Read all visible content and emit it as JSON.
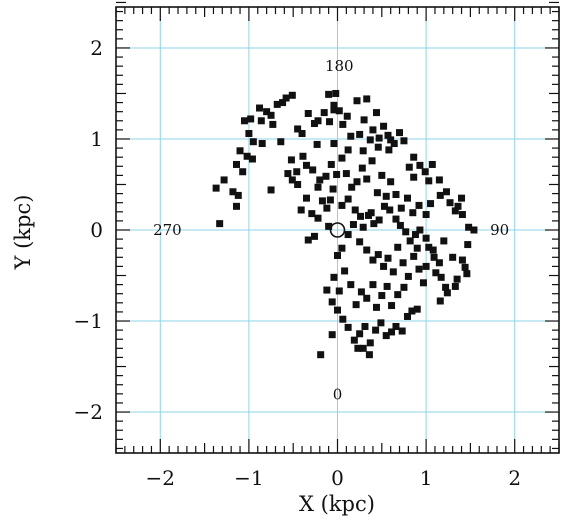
{
  "chart_data": {
    "type": "scatter",
    "xlabel": "X (kpc)",
    "ylabel": "Y (kpc)",
    "xlim": [
      -2.5,
      2.5
    ],
    "ylim": [
      -2.45,
      2.45
    ],
    "xticks": [
      -2,
      -1,
      0,
      1,
      2
    ],
    "yticks": [
      -2,
      -1,
      0,
      1,
      2
    ],
    "xtick_labels": [
      "−2",
      "−1",
      "0",
      "1",
      "2"
    ],
    "ytick_labels": [
      "−2",
      "−1",
      "0",
      "1",
      "2"
    ],
    "grid": true,
    "colors": {
      "grid": "#8fd3e8",
      "marker": "#111111",
      "frame": "#111111"
    },
    "annotations": [
      {
        "text": "180",
        "x": 0.02,
        "y": 1.8
      },
      {
        "text": "270",
        "x": -1.92,
        "y": 0.0
      },
      {
        "text": "90",
        "x": 1.83,
        "y": 0.0
      },
      {
        "text": "0",
        "x": 0.0,
        "y": -1.81
      }
    ],
    "sun": {
      "x": 0.0,
      "y": 0.0
    },
    "series": [
      {
        "points": [
          [
            -1.33,
            0.07
          ],
          [
            -1.37,
            0.46
          ],
          [
            -1.28,
            0.55
          ],
          [
            -1.18,
            0.42
          ],
          [
            -1.12,
            0.38
          ],
          [
            -1.14,
            0.26
          ],
          [
            -1.07,
            0.64
          ],
          [
            -1.14,
            0.72
          ],
          [
            -1.02,
            0.81
          ],
          [
            -1.1,
            0.87
          ],
          [
            -1.0,
            1.06
          ],
          [
            -0.95,
            0.97
          ],
          [
            -1.05,
            1.2
          ],
          [
            -0.98,
            1.22
          ],
          [
            -0.88,
            1.34
          ],
          [
            -0.86,
            1.2
          ],
          [
            -0.8,
            1.3
          ],
          [
            -0.75,
            1.26
          ],
          [
            -0.73,
            1.16
          ],
          [
            -0.68,
            1.38
          ],
          [
            -0.62,
            1.4
          ],
          [
            -0.58,
            1.45
          ],
          [
            -0.51,
            1.48
          ],
          [
            -0.45,
            1.11
          ],
          [
            -0.4,
            1.06
          ],
          [
            -0.33,
            1.28
          ],
          [
            -0.26,
            1.17
          ],
          [
            -0.22,
            1.2
          ],
          [
            -0.15,
            1.29
          ],
          [
            -0.09,
            1.19
          ],
          [
            -0.04,
            1.37
          ],
          [
            -0.1,
            1.49
          ],
          [
            -0.02,
            1.5
          ],
          [
            -0.04,
            1.32
          ],
          [
            0.02,
            1.31
          ],
          [
            0.06,
            1.16
          ],
          [
            0.11,
            1.25
          ],
          [
            0.15,
            1.03
          ],
          [
            0.22,
            1.42
          ],
          [
            0.25,
            1.05
          ],
          [
            0.3,
            1.21
          ],
          [
            0.33,
            1.44
          ],
          [
            0.37,
            0.99
          ],
          [
            0.4,
            1.1
          ],
          [
            0.44,
            1.29
          ],
          [
            0.47,
            1.01
          ],
          [
            0.52,
            1.14
          ],
          [
            0.57,
            1.04
          ],
          [
            0.6,
            0.99
          ],
          [
            0.64,
            0.95
          ],
          [
            0.7,
            1.07
          ],
          [
            0.75,
            0.98
          ],
          [
            0.86,
            0.8
          ],
          [
            0.81,
            0.69
          ],
          [
            0.86,
            0.58
          ],
          [
            0.93,
            0.71
          ],
          [
            0.99,
            0.64
          ],
          [
            1.03,
            0.54
          ],
          [
            1.07,
            0.72
          ],
          [
            1.15,
            0.55
          ],
          [
            1.16,
            0.38
          ],
          [
            1.23,
            0.42
          ],
          [
            1.27,
            0.3
          ],
          [
            1.33,
            0.21
          ],
          [
            1.36,
            0.26
          ],
          [
            1.41,
            0.17
          ],
          [
            1.48,
            0.03
          ],
          [
            1.54,
            0.0
          ],
          [
            1.47,
            -0.16
          ],
          [
            1.41,
            -0.33
          ],
          [
            1.44,
            -0.41
          ],
          [
            1.46,
            -0.48
          ],
          [
            1.35,
            -0.54
          ],
          [
            1.33,
            -0.62
          ],
          [
            1.22,
            -0.63
          ],
          [
            1.24,
            -0.69
          ],
          [
            1.17,
            -0.52
          ],
          [
            1.11,
            -0.47
          ],
          [
            1.15,
            -0.36
          ],
          [
            1.08,
            -0.22
          ],
          [
            1.09,
            -0.3
          ],
          [
            1.03,
            -0.19
          ],
          [
            1.0,
            -0.09
          ],
          [
            0.93,
            0.0
          ],
          [
            0.88,
            -0.05
          ],
          [
            0.82,
            -0.12
          ],
          [
            0.77,
            -0.02
          ],
          [
            0.71,
            0.05
          ],
          [
            0.66,
            0.12
          ],
          [
            0.59,
            0.22
          ],
          [
            0.53,
            0.26
          ],
          [
            0.47,
            0.11
          ],
          [
            0.41,
            0.07
          ],
          [
            0.35,
            0.16
          ],
          [
            0.29,
            0.03
          ],
          [
            0.26,
            0.15
          ],
          [
            0.2,
            0.22
          ],
          [
            0.12,
            0.34
          ],
          [
            0.05,
            0.27
          ],
          [
            -0.05,
            0.45
          ],
          [
            -0.08,
            0.33
          ],
          [
            -0.12,
            0.24
          ],
          [
            -0.17,
            0.32
          ],
          [
            -0.22,
            0.47
          ],
          [
            -0.29,
            0.18
          ],
          [
            -0.35,
            0.35
          ],
          [
            -0.41,
            0.22
          ],
          [
            -0.45,
            0.5
          ],
          [
            -0.51,
            0.55
          ],
          [
            -0.56,
            0.62
          ],
          [
            -0.52,
            0.77
          ],
          [
            -0.46,
            0.64
          ],
          [
            -0.39,
            0.81
          ],
          [
            -0.35,
            0.71
          ],
          [
            -0.28,
            0.66
          ],
          [
            -0.2,
            0.55
          ],
          [
            -0.13,
            0.59
          ],
          [
            -0.07,
            0.72
          ],
          [
            -0.01,
            0.61
          ],
          [
            0.05,
            0.79
          ],
          [
            0.1,
            0.62
          ],
          [
            0.16,
            0.47
          ],
          [
            0.22,
            0.53
          ],
          [
            0.28,
            0.68
          ],
          [
            0.33,
            0.56
          ],
          [
            0.39,
            0.76
          ],
          [
            0.45,
            0.41
          ],
          [
            0.5,
            0.6
          ],
          [
            0.55,
            0.37
          ],
          [
            0.6,
            0.53
          ],
          [
            0.66,
            0.39
          ],
          [
            0.72,
            0.24
          ],
          [
            0.79,
            0.35
          ],
          [
            0.85,
            0.19
          ],
          [
            0.92,
            0.27
          ],
          [
            1.0,
            0.17
          ],
          [
            1.05,
            0.29
          ],
          [
            0.25,
            -0.13
          ],
          [
            0.33,
            -0.22
          ],
          [
            0.4,
            -0.33
          ],
          [
            0.46,
            -0.27
          ],
          [
            0.52,
            -0.4
          ],
          [
            0.57,
            -0.31
          ],
          [
            0.63,
            -0.46
          ],
          [
            0.68,
            -0.19
          ],
          [
            0.74,
            -0.36
          ],
          [
            0.8,
            -0.51
          ],
          [
            0.86,
            -0.29
          ],
          [
            0.92,
            -0.43
          ],
          [
            0.97,
            -0.58
          ],
          [
            1.0,
            -0.4
          ],
          [
            0.75,
            -0.63
          ],
          [
            0.68,
            -0.71
          ],
          [
            0.61,
            -0.83
          ],
          [
            0.56,
            -0.62
          ],
          [
            0.5,
            -0.72
          ],
          [
            0.44,
            -0.85
          ],
          [
            0.4,
            -0.6
          ],
          [
            0.33,
            -0.75
          ],
          [
            0.27,
            -0.68
          ],
          [
            0.21,
            -0.82
          ],
          [
            0.15,
            -0.6
          ],
          [
            0.08,
            -0.45
          ],
          [
            0.02,
            -0.67
          ],
          [
            -0.04,
            -0.52
          ],
          [
            -0.12,
            -0.66
          ],
          [
            -0.06,
            -0.79
          ],
          [
            0.0,
            -0.88
          ],
          [
            0.06,
            -0.98
          ],
          [
            0.12,
            -1.07
          ],
          [
            0.19,
            -1.21
          ],
          [
            0.25,
            -1.14
          ],
          [
            0.31,
            -1.06
          ],
          [
            0.37,
            -1.24
          ],
          [
            0.43,
            -1.1
          ],
          [
            0.49,
            -1.02
          ],
          [
            0.55,
            -1.16
          ],
          [
            0.61,
            -1.12
          ],
          [
            0.66,
            -1.06
          ],
          [
            0.73,
            -1.11
          ],
          [
            0.79,
            -0.95
          ],
          [
            0.84,
            -0.89
          ],
          [
            0.9,
            -0.87
          ],
          [
            0.36,
            -1.37
          ],
          [
            0.29,
            -1.3
          ],
          [
            0.23,
            -1.3
          ],
          [
            -0.06,
            -1.15
          ],
          [
            -0.19,
            -1.37
          ],
          [
            0.0,
            -0.28
          ],
          [
            0.05,
            -0.2
          ],
          [
            0.12,
            -0.05
          ],
          [
            0.18,
            0.06
          ],
          [
            -0.1,
            0.04
          ],
          [
            -0.26,
            -0.07
          ],
          [
            -0.22,
            0.13
          ],
          [
            0.58,
            0.88
          ],
          [
            0.46,
            0.91
          ],
          [
            0.29,
            0.87
          ],
          [
            0.12,
            0.88
          ],
          [
            -0.04,
            0.95
          ],
          [
            -0.23,
            0.94
          ],
          [
            -0.64,
            0.97
          ],
          [
            -0.85,
            0.95
          ],
          [
            -0.96,
            0.78
          ],
          [
            -0.75,
            0.44
          ],
          [
            -0.33,
            -0.11
          ],
          [
            0.38,
            0.19
          ],
          [
            0.9,
            -0.2
          ],
          [
            1.2,
            -0.12
          ],
          [
            1.3,
            -0.3
          ],
          [
            1.16,
            -0.78
          ],
          [
            1.4,
            0.35
          ]
        ]
      }
    ]
  }
}
